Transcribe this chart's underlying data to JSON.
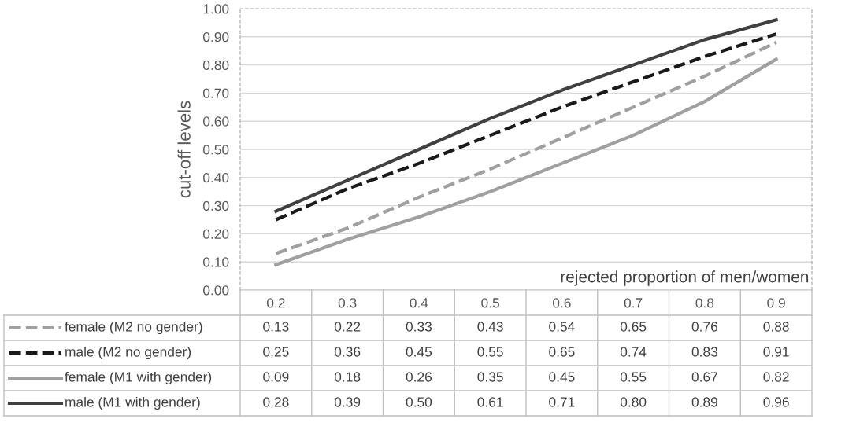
{
  "chart_data": {
    "type": "line",
    "xlabel": "rejected proportion of men/women",
    "ylabel": "cut-off levels",
    "categories": [
      "0.2",
      "0.3",
      "0.4",
      "0.5",
      "0.6",
      "0.7",
      "0.8",
      "0.9"
    ],
    "series": [
      {
        "name": "female (M2 no gender)",
        "color": "#a0a0a0",
        "line_style": "dashed",
        "values": [
          0.13,
          0.22,
          0.33,
          0.43,
          0.54,
          0.65,
          0.76,
          0.88
        ],
        "value_labels": [
          "0.13",
          "0.22",
          "0.33",
          "0.43",
          "0.54",
          "0.65",
          "0.76",
          "0.88"
        ]
      },
      {
        "name": "male (M2 no gender)",
        "color": "#1a1a1a",
        "line_style": "dashed",
        "values": [
          0.25,
          0.36,
          0.45,
          0.55,
          0.65,
          0.74,
          0.83,
          0.91
        ],
        "value_labels": [
          "0.25",
          "0.36",
          "0.45",
          "0.55",
          "0.65",
          "0.74",
          "0.83",
          "0.91"
        ]
      },
      {
        "name": "female (M1 with gender)",
        "color": "#a0a0a0",
        "line_style": "solid",
        "values": [
          0.09,
          0.18,
          0.26,
          0.35,
          0.45,
          0.55,
          0.67,
          0.82
        ],
        "value_labels": [
          "0.09",
          "0.18",
          "0.26",
          "0.35",
          "0.45",
          "0.55",
          "0.67",
          "0.82"
        ]
      },
      {
        "name": "male (M1 with gender)",
        "color": "#404040",
        "line_style": "solid",
        "values": [
          0.28,
          0.39,
          0.5,
          0.61,
          0.71,
          0.8,
          0.89,
          0.96
        ],
        "value_labels": [
          "0.28",
          "0.39",
          "0.50",
          "0.61",
          "0.71",
          "0.80",
          "0.89",
          "0.96"
        ]
      }
    ],
    "ylim": [
      0,
      1
    ],
    "yticks": [
      {
        "value": 0,
        "label": "0.00"
      },
      {
        "value": 0.1,
        "label": "0.10"
      },
      {
        "value": 0.2,
        "label": "0.20"
      },
      {
        "value": 0.3,
        "label": "0.30"
      },
      {
        "value": 0.4,
        "label": "0.40"
      },
      {
        "value": 0.5,
        "label": "0.50"
      },
      {
        "value": 0.6,
        "label": "0.60"
      },
      {
        "value": 0.7,
        "label": "0.70"
      },
      {
        "value": 0.8,
        "label": "0.80"
      },
      {
        "value": 0.9,
        "label": "0.90"
      },
      {
        "value": 1,
        "label": "1.00"
      }
    ],
    "grid": "y",
    "legend": "bottom",
    "marker": "none"
  }
}
